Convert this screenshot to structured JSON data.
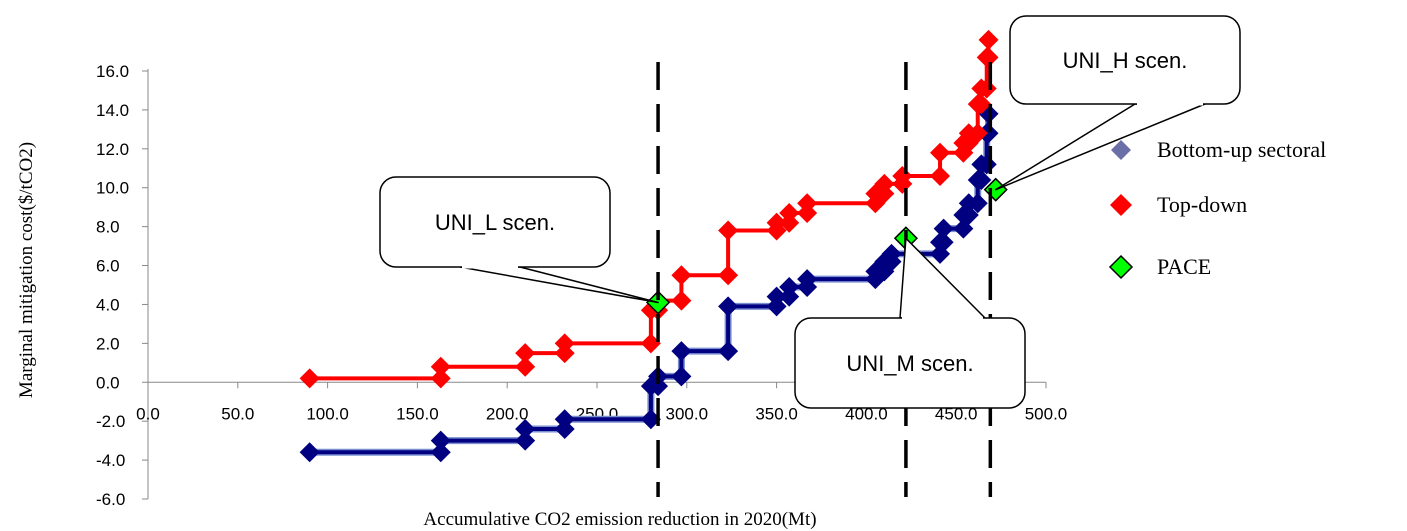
{
  "chart_data": {
    "type": "line",
    "title": "",
    "xlabel": "Accumulative CO2 emission reduction in 2020(Mt)",
    "ylabel": "Marginal mitigation cost($/tCO2)",
    "xlim": [
      0,
      500
    ],
    "ylim": [
      -6,
      16
    ],
    "x_ticks": [
      "0.0",
      "50.0",
      "100.0",
      "150.0",
      "200.0",
      "250.0",
      "300.0",
      "350.0",
      "400.0",
      "450.0",
      "500.0"
    ],
    "y_ticks": [
      "-6.0",
      "-4.0",
      "-2.0",
      "0.0",
      "2.0",
      "4.0",
      "6.0",
      "8.0",
      "10.0",
      "12.0",
      "14.0",
      "16.0"
    ],
    "legend_position": "right",
    "series": [
      {
        "name": "Bottom-up sectoral",
        "color": "#000080",
        "marker": "diamond",
        "points": [
          [
            90,
            -3.6
          ],
          [
            163,
            -3.6
          ],
          [
            163,
            -3.0
          ],
          [
            210,
            -3.0
          ],
          [
            210,
            -2.4
          ],
          [
            232,
            -2.4
          ],
          [
            232,
            -1.9
          ],
          [
            280,
            -1.9
          ],
          [
            280,
            -0.2
          ],
          [
            284,
            -0.2
          ],
          [
            284,
            0.3
          ],
          [
            297,
            0.3
          ],
          [
            297,
            1.6
          ],
          [
            323,
            1.6
          ],
          [
            323,
            3.9
          ],
          [
            350,
            3.9
          ],
          [
            350,
            4.4
          ],
          [
            357,
            4.4
          ],
          [
            357,
            4.9
          ],
          [
            367,
            4.9
          ],
          [
            367,
            5.3
          ],
          [
            405,
            5.3
          ],
          [
            405,
            5.7
          ],
          [
            410,
            5.7
          ],
          [
            410,
            6.2
          ],
          [
            414,
            6.2
          ],
          [
            414,
            6.6
          ],
          [
            441,
            6.6
          ],
          [
            441,
            7.2
          ],
          [
            443,
            7.2
          ],
          [
            443,
            7.9
          ],
          [
            454,
            7.9
          ],
          [
            454,
            8.6
          ],
          [
            457,
            8.6
          ],
          [
            457,
            9.2
          ],
          [
            462,
            9.2
          ],
          [
            462,
            10.4
          ],
          [
            464,
            10.4
          ],
          [
            464,
            11.2
          ],
          [
            467,
            11.2
          ],
          [
            467,
            12.8
          ],
          [
            468,
            12.8
          ],
          [
            468,
            13.8
          ]
        ]
      },
      {
        "name": "Top-down",
        "color": "#ff0000",
        "marker": "diamond",
        "points": [
          [
            90,
            0.2
          ],
          [
            163,
            0.2
          ],
          [
            163,
            0.8
          ],
          [
            210,
            0.8
          ],
          [
            210,
            1.5
          ],
          [
            232,
            1.5
          ],
          [
            232,
            2.0
          ],
          [
            280,
            2.0
          ],
          [
            280,
            3.7
          ],
          [
            284,
            3.7
          ],
          [
            284,
            4.2
          ],
          [
            297,
            4.2
          ],
          [
            297,
            5.5
          ],
          [
            323,
            5.5
          ],
          [
            323,
            7.8
          ],
          [
            350,
            7.8
          ],
          [
            350,
            8.2
          ],
          [
            357,
            8.2
          ],
          [
            357,
            8.7
          ],
          [
            367,
            8.7
          ],
          [
            367,
            9.2
          ],
          [
            405,
            9.2
          ],
          [
            405,
            9.7
          ],
          [
            410,
            9.7
          ],
          [
            410,
            10.2
          ],
          [
            420,
            10.2
          ],
          [
            420,
            10.6
          ],
          [
            441,
            10.6
          ],
          [
            441,
            11.8
          ],
          [
            454,
            11.8
          ],
          [
            454,
            12.3
          ],
          [
            457,
            12.3
          ],
          [
            457,
            12.8
          ],
          [
            462,
            12.8
          ],
          [
            462,
            14.3
          ],
          [
            464,
            14.3
          ],
          [
            464,
            15.1
          ],
          [
            467,
            15.1
          ],
          [
            467,
            16.7
          ],
          [
            468,
            16.7
          ],
          [
            468,
            17.6
          ]
        ]
      },
      {
        "name": "PACE",
        "color": "#00ff00",
        "marker": "diamond",
        "points": [
          [
            284,
            4.1
          ],
          [
            422,
            7.4
          ],
          [
            472,
            9.9
          ]
        ]
      }
    ],
    "vertical_lines": [
      284,
      422,
      469
    ],
    "callouts": [
      {
        "label": "UNI_L scen.",
        "target_x": 284,
        "target_y": 4.1
      },
      {
        "label": "UNI_M scen.",
        "target_x": 422,
        "target_y": 7.4
      },
      {
        "label": "UNI_H scen.",
        "target_x": 472,
        "target_y": 9.9
      }
    ]
  }
}
